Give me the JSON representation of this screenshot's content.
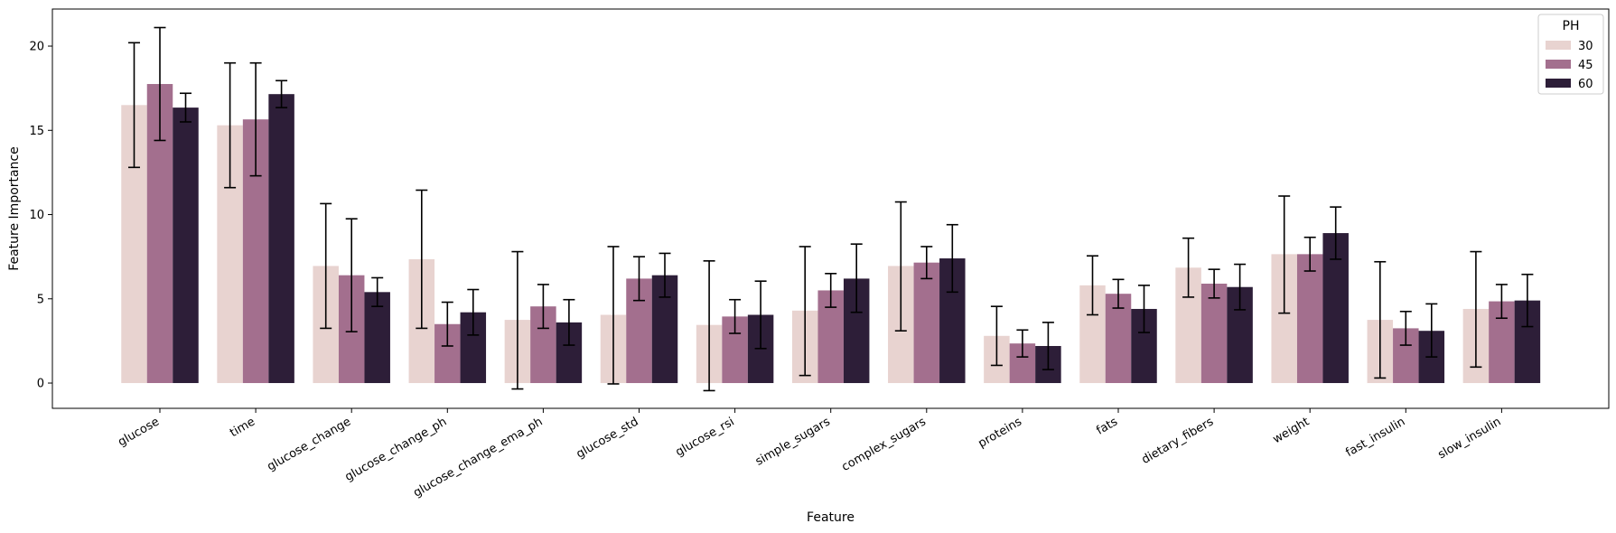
{
  "chart_data": {
    "type": "bar",
    "xlabel": "Feature",
    "ylabel": "Feature Importance",
    "ylim": [
      -1.5,
      22.2
    ],
    "yticks": [
      0,
      5,
      10,
      15,
      20
    ],
    "grid": false,
    "categories": [
      "glucose",
      "time",
      "glucose_change",
      "glucose_change_ph",
      "glucose_change_ema_ph",
      "glucose_std",
      "glucose_rsi",
      "simple_sugars",
      "complex_sugars",
      "proteins",
      "fats",
      "dietary_fibers",
      "weight",
      "fast_insulin",
      "slow_insulin"
    ],
    "legend": {
      "title": "PH",
      "position": "top-right"
    },
    "series": [
      {
        "name": "30",
        "color": "#e8d3d0",
        "values": [
          16.5,
          15.3,
          6.95,
          7.35,
          3.75,
          4.05,
          3.45,
          4.3,
          6.95,
          2.8,
          5.8,
          6.85,
          7.65,
          3.75,
          4.4
        ],
        "err_low": [
          12.8,
          11.6,
          3.25,
          3.25,
          -0.35,
          -0.05,
          -0.45,
          0.45,
          3.1,
          1.05,
          4.05,
          5.1,
          4.15,
          0.3,
          0.95
        ],
        "err_high": [
          20.2,
          19.0,
          10.65,
          11.45,
          7.8,
          8.1,
          7.25,
          8.1,
          10.75,
          4.55,
          7.55,
          8.6,
          11.1,
          7.2,
          7.8
        ]
      },
      {
        "name": "45",
        "color": "#a36f8e",
        "values": [
          17.75,
          15.65,
          6.4,
          3.5,
          4.55,
          6.2,
          3.95,
          5.5,
          7.15,
          2.35,
          5.3,
          5.9,
          7.65,
          3.25,
          4.85
        ],
        "err_low": [
          14.4,
          12.3,
          3.05,
          2.2,
          3.25,
          4.9,
          2.95,
          4.5,
          6.2,
          1.55,
          4.45,
          5.05,
          6.65,
          2.25,
          3.85
        ],
        "err_high": [
          21.1,
          19.0,
          9.75,
          4.8,
          5.85,
          7.5,
          4.95,
          6.5,
          8.1,
          3.15,
          6.15,
          6.75,
          8.65,
          4.25,
          5.85
        ]
      },
      {
        "name": "60",
        "color": "#2d1e38",
        "values": [
          16.35,
          17.15,
          5.4,
          4.2,
          3.6,
          6.4,
          4.05,
          6.2,
          7.4,
          2.2,
          4.4,
          5.7,
          8.9,
          3.1,
          4.9
        ],
        "err_low": [
          15.5,
          16.35,
          4.55,
          2.85,
          2.25,
          5.1,
          2.05,
          4.2,
          5.4,
          0.8,
          3.0,
          4.35,
          7.35,
          1.55,
          3.35
        ],
        "err_high": [
          17.2,
          17.95,
          6.25,
          5.55,
          4.95,
          7.7,
          6.05,
          8.25,
          9.4,
          3.6,
          5.8,
          7.05,
          10.45,
          4.7,
          6.45
        ]
      }
    ]
  }
}
